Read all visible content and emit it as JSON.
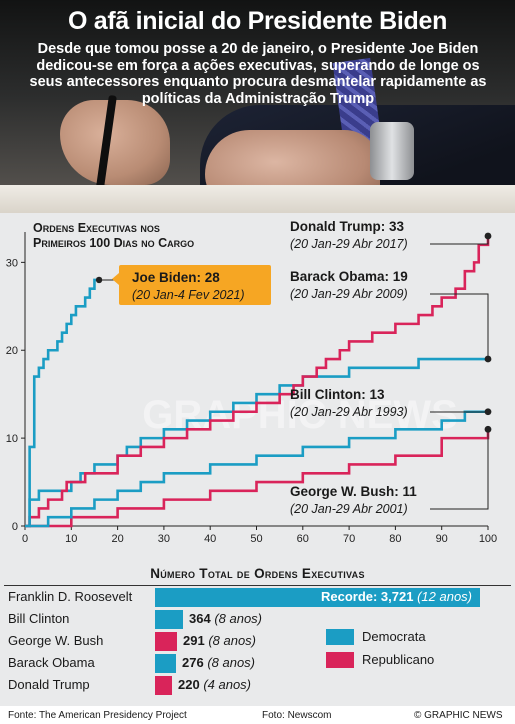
{
  "header": {
    "title": "O afã inicial do Presidente Biden",
    "subtitle": "Desde que tomou posse a 20 de janeiro, o Presidente Joe Biden dedicou-se em força a ações executivas, superando de longe os seus antecessores enquanto procura desmantelar rapidamente as políticas da Administração Trump"
  },
  "colors": {
    "democrat": "#1b9dc4",
    "republican": "#d9245a",
    "chart_bg": "#e9eaeb",
    "text": "#1a1a1a"
  },
  "chart_data": [
    {
      "type": "line",
      "title_lines": [
        "Ordens Executivas nos",
        "Primeiros 100 Dias no Cargo"
      ],
      "xlabel": "",
      "ylabel": "",
      "xlim": [
        0,
        100
      ],
      "ylim": [
        0,
        33
      ],
      "x_ticks": [
        0,
        10,
        20,
        30,
        40,
        50,
        60,
        70,
        80,
        90,
        100
      ],
      "y_ticks": [
        0,
        10,
        20,
        30
      ],
      "grid": false,
      "series": [
        {
          "name": "Joe Biden",
          "label_bold": "Joe Biden: 28",
          "label_dates": "(20 Jan-4 Fev 2021)",
          "party": "democrat",
          "final": 28,
          "x": [
            0,
            1,
            2,
            3,
            4,
            5,
            6,
            7,
            8,
            9,
            10,
            11,
            12,
            13,
            14,
            15,
            16
          ],
          "y": [
            0,
            9,
            17,
            18,
            19,
            20,
            20,
            21,
            22,
            23,
            24,
            25,
            25,
            26,
            27,
            28,
            28
          ]
        },
        {
          "name": "Donald Trump",
          "label_bold": "Donald Trump: 33",
          "label_dates": "(20 Jan-29 Abr 2017)",
          "party": "republican",
          "final": 33,
          "x": [
            0,
            1,
            3,
            5,
            8,
            9,
            10,
            13,
            15,
            20,
            25,
            28,
            30,
            35,
            40,
            45,
            50,
            55,
            58,
            60,
            63,
            65,
            68,
            70,
            75,
            80,
            85,
            88,
            90,
            93,
            95,
            97,
            98,
            100
          ],
          "y": [
            0,
            1,
            2,
            3,
            4,
            5,
            5,
            6,
            6,
            8,
            9,
            9,
            10,
            11,
            12,
            13,
            14,
            15,
            16,
            17,
            18,
            19,
            20,
            21,
            22,
            23,
            24,
            25,
            26,
            27,
            29,
            30,
            32,
            33
          ]
        },
        {
          "name": "Barack Obama",
          "label_bold": "Barack Obama: 19",
          "label_dates": "(20 Jan-29 Abr 2009)",
          "party": "democrat",
          "final": 19,
          "x": [
            0,
            1,
            3,
            10,
            12,
            15,
            20,
            22,
            25,
            30,
            35,
            40,
            45,
            50,
            55,
            60,
            65,
            70,
            75,
            80,
            85,
            90,
            95,
            100
          ],
          "y": [
            0,
            3,
            4,
            5,
            6,
            7,
            8,
            9,
            10,
            11,
            12,
            13,
            14,
            15,
            16,
            17,
            17,
            18,
            18,
            18,
            19,
            19,
            19,
            19
          ]
        },
        {
          "name": "Bill Clinton",
          "label_bold": "Bill Clinton: 13",
          "label_dates": "(20 Jan-29 Abr 1993)",
          "party": "democrat",
          "final": 13,
          "x": [
            0,
            5,
            10,
            15,
            20,
            25,
            30,
            40,
            50,
            60,
            70,
            80,
            90,
            95,
            100
          ],
          "y": [
            0,
            1,
            2,
            3,
            4,
            5,
            6,
            7,
            8,
            9,
            10,
            11,
            12,
            13,
            13
          ]
        },
        {
          "name": "George W. Bush",
          "label_bold": "George W. Bush: 11",
          "label_dates": "(20 Jan-29 Abr 2001)",
          "party": "republican",
          "final": 11,
          "x": [
            0,
            10,
            20,
            30,
            40,
            50,
            60,
            70,
            80,
            90,
            100
          ],
          "y": [
            0,
            1,
            2,
            3,
            4,
            5,
            6,
            7,
            8,
            10,
            11
          ]
        }
      ]
    },
    {
      "type": "bar",
      "title": "Número Total de Ordens Executivas",
      "categories": [
        "Franklin D. Roosevelt",
        "Bill Clinton",
        "George W. Bush",
        "Barack Obama",
        "Donald Trump"
      ],
      "values": [
        3721,
        364,
        291,
        276,
        220
      ],
      "value_labels": [
        "Recorde: 3,721",
        "364",
        "291",
        "276",
        "220"
      ],
      "notes": [
        "(12 anos)",
        "(8 anos)",
        "(8 anos)",
        "(8 anos)",
        "(4 anos)"
      ],
      "party": [
        "democrat",
        "democrat",
        "republican",
        "democrat",
        "republican"
      ]
    }
  ],
  "legend": {
    "democrat": "Democrata",
    "republican": "Republicano"
  },
  "watermark": "GRAPHIC NEWS",
  "footer": {
    "source": "Fonte: The American Presidency Project",
    "photo": "Foto: Newscom",
    "brand": "© GRAPHIC NEWS"
  }
}
